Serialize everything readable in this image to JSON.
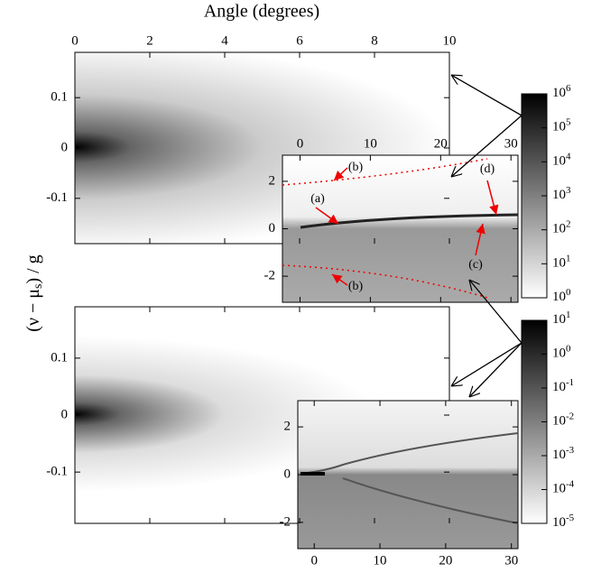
{
  "figure": {
    "x_label": "Angle (degrees)",
    "y_label": {
      "text": "(ν − μ",
      "sub": "s",
      "rest": ") / g"
    },
    "main": {
      "xlim": [
        0,
        10
      ],
      "xticks": [
        0,
        2,
        4,
        6,
        8,
        10
      ],
      "ylim": [
        -0.19,
        0.19
      ],
      "yticks": [
        0.1,
        0,
        -0.1
      ]
    },
    "inset": {
      "xlim": [
        -2.5,
        31
      ],
      "xticks": [
        0,
        10,
        20,
        30
      ],
      "ylim": [
        -3.1,
        3.1
      ],
      "yticks": [
        2,
        0,
        -2
      ]
    },
    "annotations": [
      "(a)",
      "(b)",
      "(b)",
      "(c)",
      "(d)"
    ],
    "colorbar_top": {
      "base": "10",
      "exponents": [
        0,
        1,
        2,
        3,
        4,
        5,
        6
      ]
    },
    "colorbar_bottom": {
      "base": "10",
      "exponents": [
        -5,
        -4,
        -3,
        -2,
        -1,
        0,
        1
      ]
    }
  }
}
